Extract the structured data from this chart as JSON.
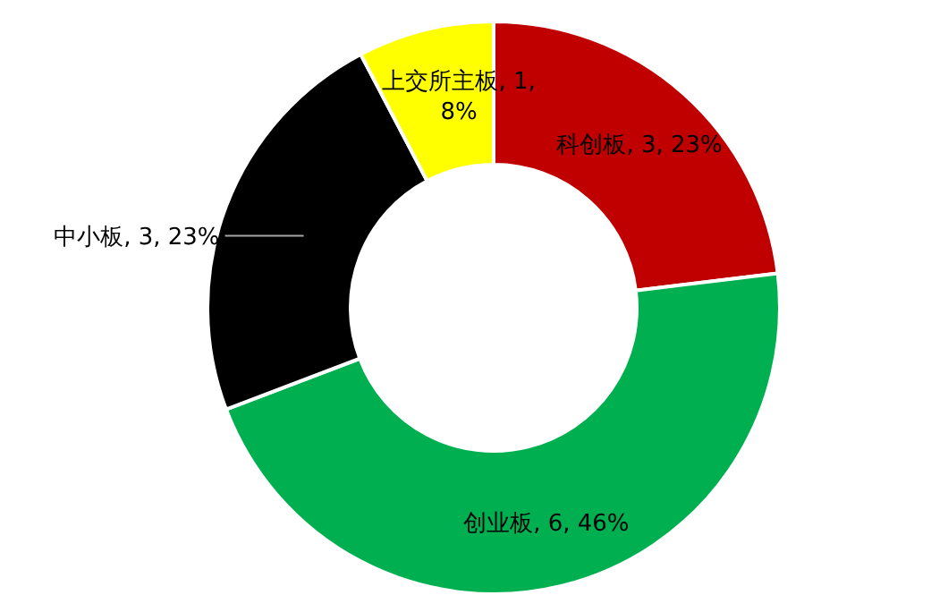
{
  "chart_data": {
    "type": "donut",
    "categories": [
      "科创板",
      "创业板",
      "中小板",
      "上交所主板"
    ],
    "values": [
      3,
      6,
      3,
      1
    ],
    "colors": [
      "#c00000",
      "#00b050",
      "#000000",
      "#ffff00"
    ],
    "value_labels": [
      "3, 23%",
      "6, 46%",
      "3, 23%",
      "1, 8%"
    ]
  }
}
